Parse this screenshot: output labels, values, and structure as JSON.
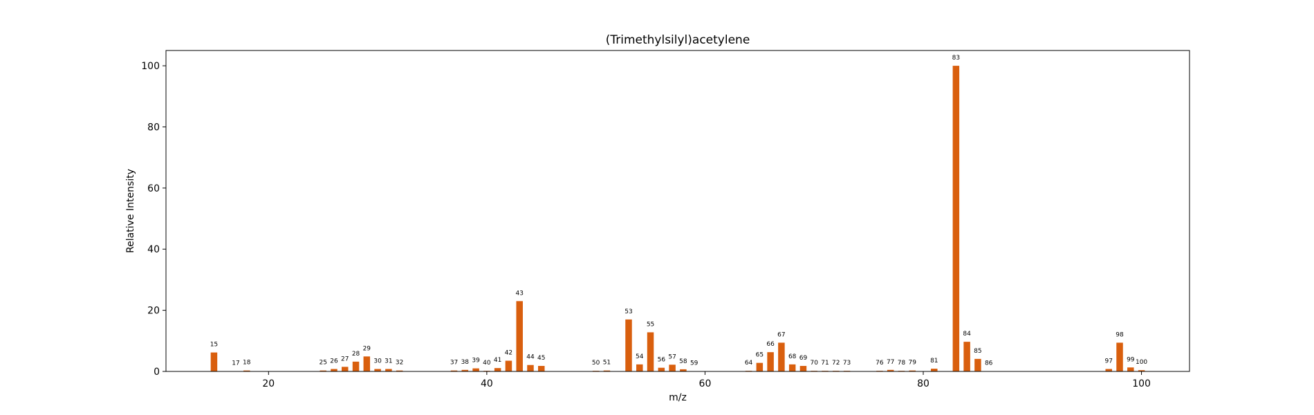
{
  "chart_data": {
    "type": "bar",
    "title": "(Trimethylsilyl)acetylene",
    "xlabel": "m/z",
    "ylabel": "Relative Intensity",
    "xlim": [
      10.6,
      104.4
    ],
    "ylim": [
      0,
      105
    ],
    "xticks": [
      20,
      40,
      60,
      80,
      100
    ],
    "yticks": [
      0,
      20,
      40,
      60,
      80,
      100
    ],
    "grid": false,
    "bar_color": "#d95f0e",
    "x": [
      15,
      17,
      18,
      25,
      26,
      27,
      28,
      29,
      30,
      31,
      32,
      37,
      38,
      39,
      40,
      41,
      42,
      43,
      44,
      45,
      50,
      51,
      53,
      54,
      55,
      56,
      57,
      58,
      59,
      64,
      65,
      66,
      67,
      68,
      69,
      70,
      71,
      72,
      73,
      76,
      77,
      78,
      79,
      81,
      83,
      84,
      85,
      86,
      97,
      98,
      99,
      100
    ],
    "values": [
      6.2,
      0.1,
      0.3,
      0.3,
      0.8,
      1.5,
      3.2,
      4.9,
      0.8,
      0.8,
      0.3,
      0.3,
      0.5,
      1.0,
      0.2,
      1.1,
      3.5,
      23.0,
      2.1,
      1.8,
      0.2,
      0.3,
      17.0,
      2.3,
      12.8,
      1.2,
      2.2,
      0.7,
      0.1,
      0.2,
      2.8,
      6.3,
      9.4,
      2.3,
      1.8,
      0.2,
      0.2,
      0.2,
      0.2,
      0.2,
      0.5,
      0.2,
      0.3,
      0.9,
      100.0,
      9.7,
      4.1,
      0.1,
      0.8,
      9.4,
      1.3,
      0.4
    ]
  }
}
